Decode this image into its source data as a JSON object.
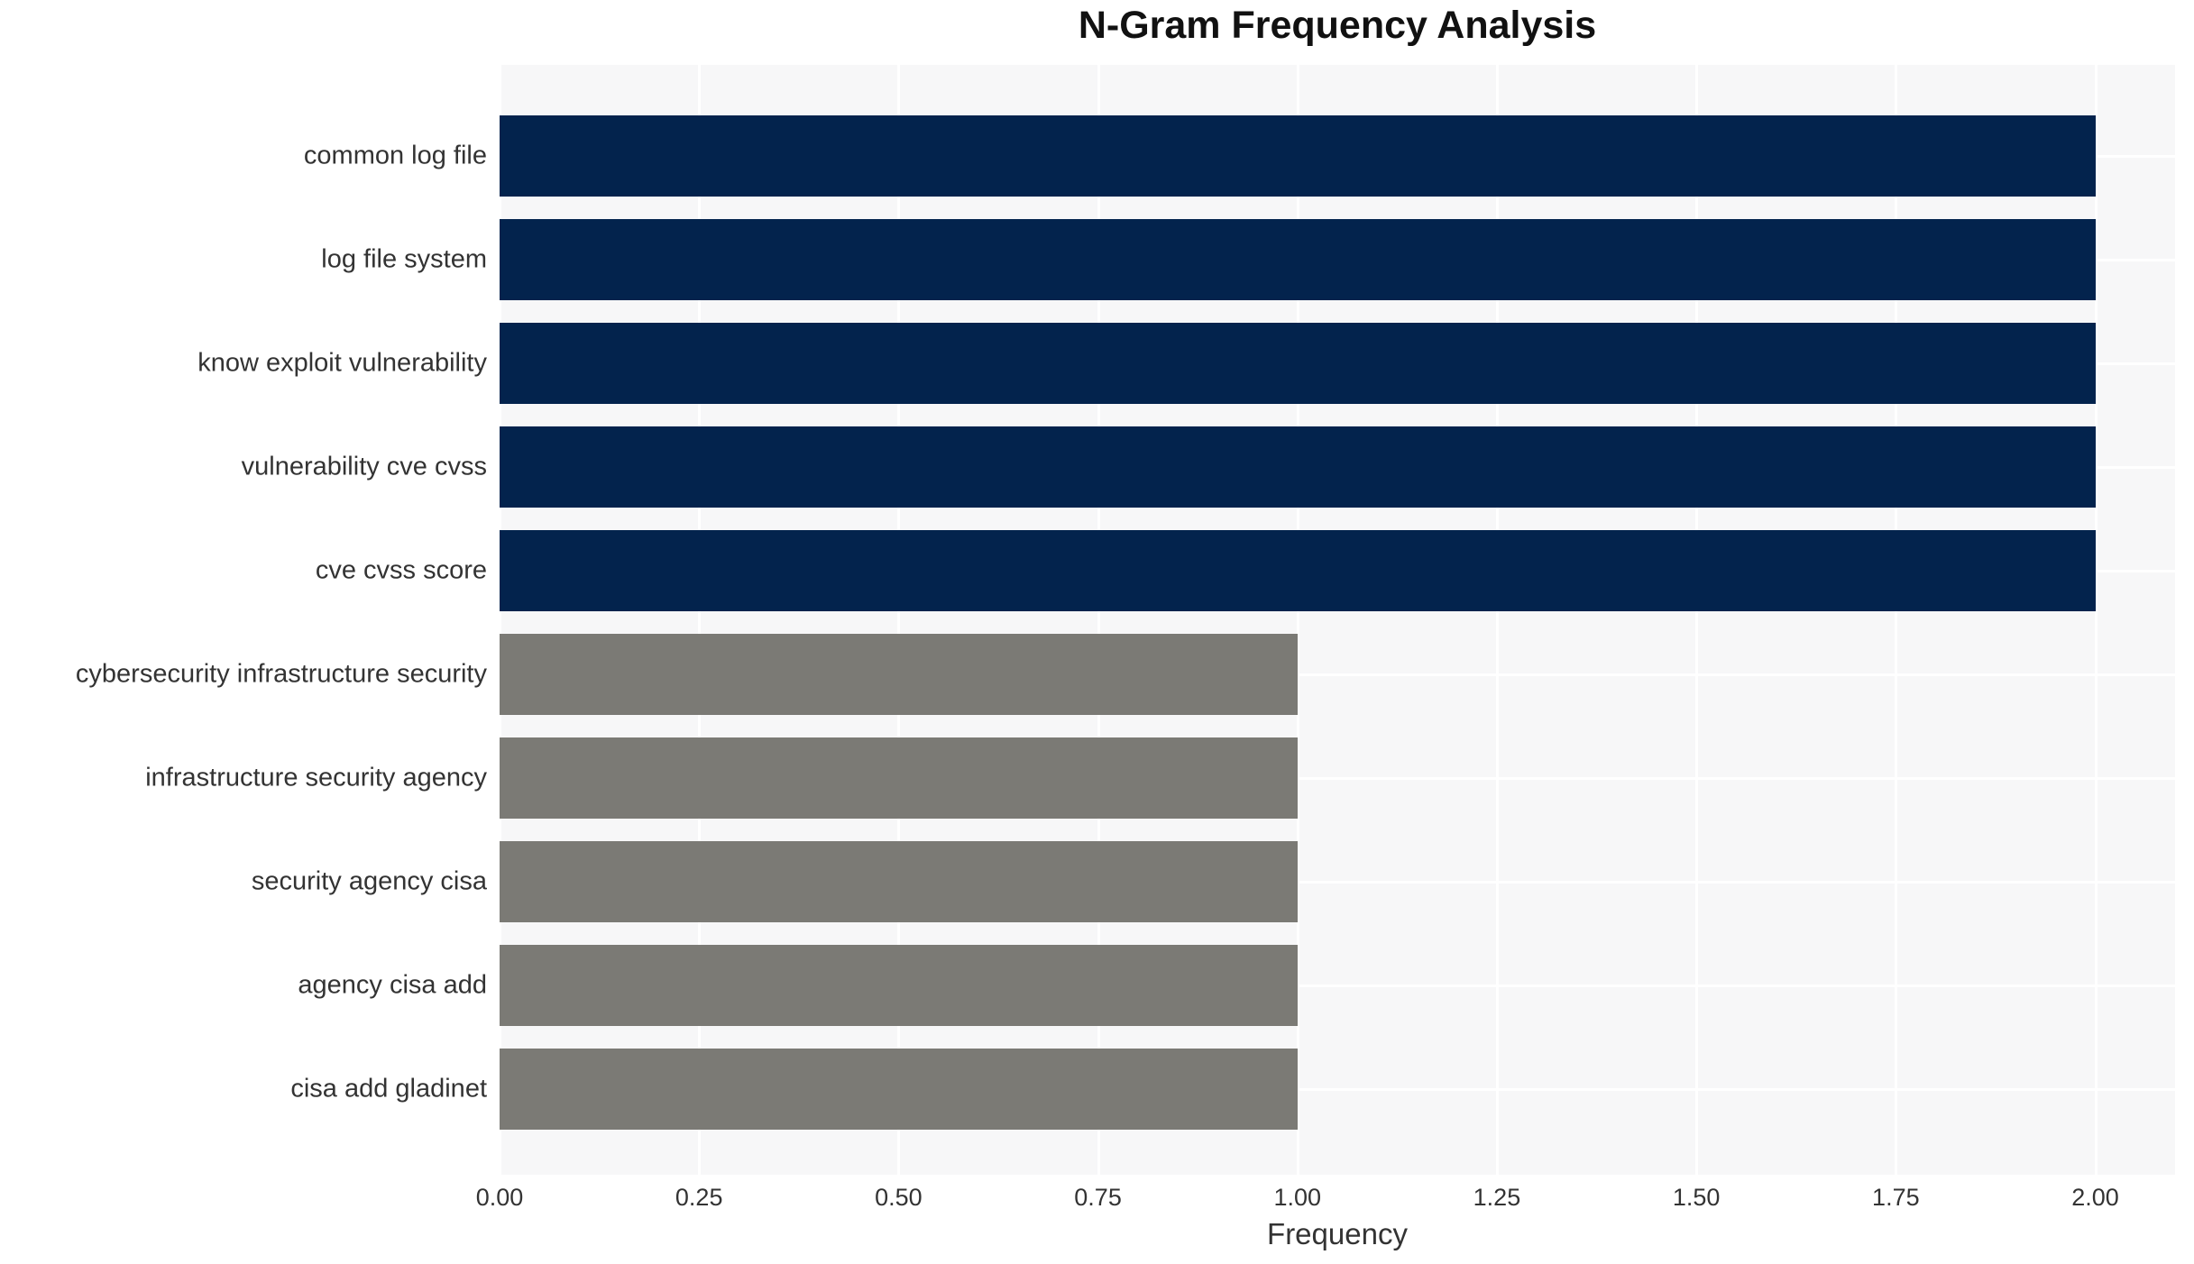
{
  "chart_data": {
    "type": "bar",
    "orientation": "horizontal",
    "title": "N-Gram Frequency Analysis",
    "xlabel": "Frequency",
    "ylabel": "",
    "categories": [
      "common log file",
      "log file system",
      "know exploit vulnerability",
      "vulnerability cve cvss",
      "cve cvss score",
      "cybersecurity infrastructure security",
      "infrastructure security agency",
      "security agency cisa",
      "agency cisa add",
      "cisa add gladinet"
    ],
    "values": [
      2,
      2,
      2,
      2,
      2,
      1,
      1,
      1,
      1,
      1
    ],
    "bar_colors": [
      "#03234d",
      "#03234d",
      "#03234d",
      "#03234d",
      "#03234d",
      "#7b7a75",
      "#7b7a75",
      "#7b7a75",
      "#7b7a75",
      "#7b7a75"
    ],
    "xlim": [
      0,
      2.1
    ],
    "xticks": [
      0.0,
      0.25,
      0.5,
      0.75,
      1.0,
      1.25,
      1.5,
      1.75,
      2.0
    ],
    "xtick_labels": [
      "0.00",
      "0.25",
      "0.50",
      "0.75",
      "1.00",
      "1.25",
      "1.50",
      "1.75",
      "2.00"
    ],
    "grid": "on",
    "legend": "none",
    "colors": {
      "bar_high": "#03234d",
      "bar_low": "#7b7a75",
      "plot_background": "#f7f7f8",
      "gridline": "#ffffff",
      "tick_text": "#333333",
      "title_text": "#111111"
    }
  }
}
